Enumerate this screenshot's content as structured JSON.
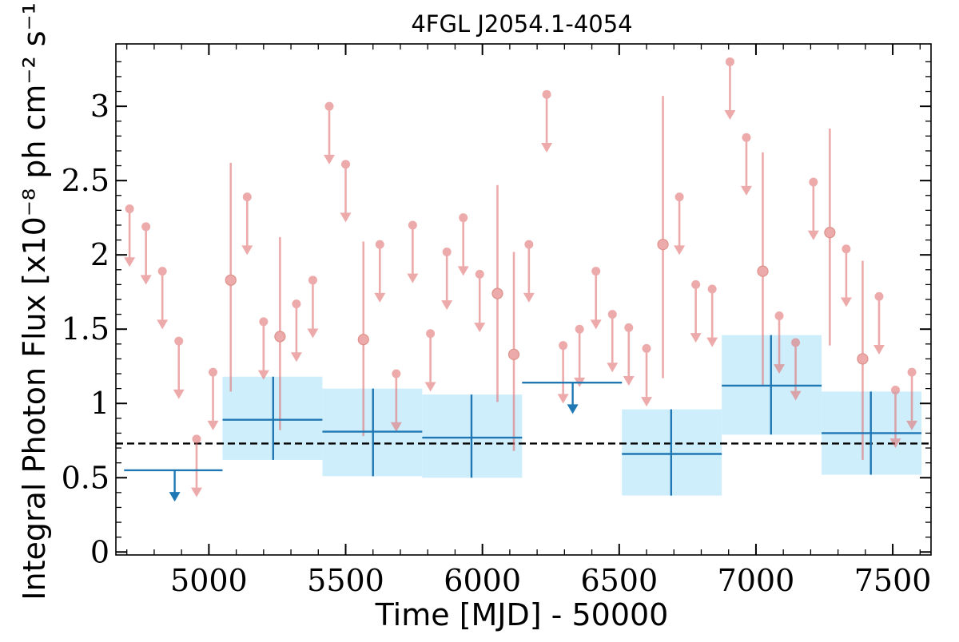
{
  "chart_data": {
    "type": "scatter",
    "title": "4FGL J2054.1-4054",
    "xlabel": "Time [MJD] - 50000",
    "ylabel": "Integral Photon Flux [x10⁻⁸ ph cm⁻² s⁻¹]",
    "xlim": [
      4660,
      7640
    ],
    "ylim": [
      -0.02,
      3.42
    ],
    "xticks": [
      5000,
      5500,
      6000,
      6500,
      7000,
      7500
    ],
    "yticks": [
      0,
      0.5,
      1,
      1.5,
      2,
      2.5,
      3
    ],
    "ytick_labels": [
      "0",
      "0.5",
      "1",
      "1.5",
      "2",
      "2.5",
      "3"
    ],
    "grid": false,
    "reference_line": {
      "y": 0.73,
      "style": "dashed",
      "color": "#000000"
    },
    "colors": {
      "short_bins": "#e06666",
      "long_bins": "#1f77b4",
      "long_bins_band": "#cfeefc"
    },
    "series": [
      {
        "kind": "short_bins_detections",
        "points": [
          {
            "x": 5080,
            "y": 1.83,
            "ylo": 1.08,
            "yhi": 2.62
          },
          {
            "x": 5260,
            "y": 1.45,
            "ylo": 0.82,
            "yhi": 2.12
          },
          {
            "x": 5565,
            "y": 1.43,
            "ylo": 0.78,
            "yhi": 2.09
          },
          {
            "x": 6055,
            "y": 1.74,
            "ylo": 1.01,
            "yhi": 2.47
          },
          {
            "x": 6115,
            "y": 1.33,
            "ylo": 0.68,
            "yhi": 2.02
          },
          {
            "x": 6660,
            "y": 2.07,
            "ylo": 1.17,
            "yhi": 3.07
          },
          {
            "x": 7025,
            "y": 1.89,
            "ylo": 1.12,
            "yhi": 2.69
          },
          {
            "x": 7270,
            "y": 2.15,
            "ylo": 1.39,
            "yhi": 2.85
          },
          {
            "x": 7390,
            "y": 1.3,
            "ylo": 0.62,
            "yhi": 1.96
          }
        ]
      },
      {
        "kind": "short_bins_upper_limits",
        "points": [
          {
            "x": 4710,
            "y": 2.31
          },
          {
            "x": 4770,
            "y": 2.19
          },
          {
            "x": 4830,
            "y": 1.89
          },
          {
            "x": 4890,
            "y": 1.42
          },
          {
            "x": 4955,
            "y": 0.76
          },
          {
            "x": 5015,
            "y": 1.21
          },
          {
            "x": 5140,
            "y": 2.39
          },
          {
            "x": 5200,
            "y": 1.55
          },
          {
            "x": 5320,
            "y": 1.67
          },
          {
            "x": 5380,
            "y": 1.83
          },
          {
            "x": 5440,
            "y": 3.0
          },
          {
            "x": 5500,
            "y": 2.61
          },
          {
            "x": 5625,
            "y": 2.07
          },
          {
            "x": 5685,
            "y": 1.2
          },
          {
            "x": 5745,
            "y": 2.2
          },
          {
            "x": 5810,
            "y": 1.47
          },
          {
            "x": 5870,
            "y": 2.02
          },
          {
            "x": 5930,
            "y": 2.25
          },
          {
            "x": 5990,
            "y": 1.87
          },
          {
            "x": 6170,
            "y": 2.07
          },
          {
            "x": 6235,
            "y": 3.08
          },
          {
            "x": 6295,
            "y": 1.39
          },
          {
            "x": 6355,
            "y": 1.5
          },
          {
            "x": 6415,
            "y": 1.89
          },
          {
            "x": 6475,
            "y": 1.6
          },
          {
            "x": 6535,
            "y": 1.51
          },
          {
            "x": 6600,
            "y": 1.37
          },
          {
            "x": 6720,
            "y": 2.39
          },
          {
            "x": 6780,
            "y": 1.8
          },
          {
            "x": 6840,
            "y": 1.77
          },
          {
            "x": 6905,
            "y": 3.3
          },
          {
            "x": 6965,
            "y": 2.79
          },
          {
            "x": 7085,
            "y": 1.59
          },
          {
            "x": 7145,
            "y": 1.41
          },
          {
            "x": 7210,
            "y": 2.49
          },
          {
            "x": 7330,
            "y": 2.04
          },
          {
            "x": 7450,
            "y": 1.72
          },
          {
            "x": 7510,
            "y": 1.09
          },
          {
            "x": 7570,
            "y": 1.21
          }
        ]
      },
      {
        "kind": "long_bins_detections",
        "bins": [
          {
            "x0": 5050,
            "x1": 5415,
            "x": 5235,
            "y": 0.89,
            "ylo": 0.62,
            "yhi": 1.18
          },
          {
            "x0": 5415,
            "x1": 5780,
            "x": 5600,
            "y": 0.81,
            "ylo": 0.51,
            "yhi": 1.1
          },
          {
            "x0": 5780,
            "x1": 6145,
            "x": 5960,
            "y": 0.77,
            "ylo": 0.5,
            "yhi": 1.06
          },
          {
            "x0": 6510,
            "x1": 6875,
            "x": 6690,
            "y": 0.66,
            "ylo": 0.38,
            "yhi": 0.96
          },
          {
            "x0": 6875,
            "x1": 7240,
            "x": 7055,
            "y": 1.12,
            "ylo": 0.79,
            "yhi": 1.46
          },
          {
            "x0": 7240,
            "x1": 7605,
            "x": 7420,
            "y": 0.8,
            "ylo": 0.52,
            "yhi": 1.08
          }
        ]
      },
      {
        "kind": "long_bins_upper_limits",
        "bins": [
          {
            "x0": 4690,
            "x1": 5050,
            "x": 4875,
            "y": 0.55
          },
          {
            "x0": 6145,
            "x1": 6510,
            "x": 6330,
            "y": 1.14
          }
        ]
      }
    ]
  }
}
